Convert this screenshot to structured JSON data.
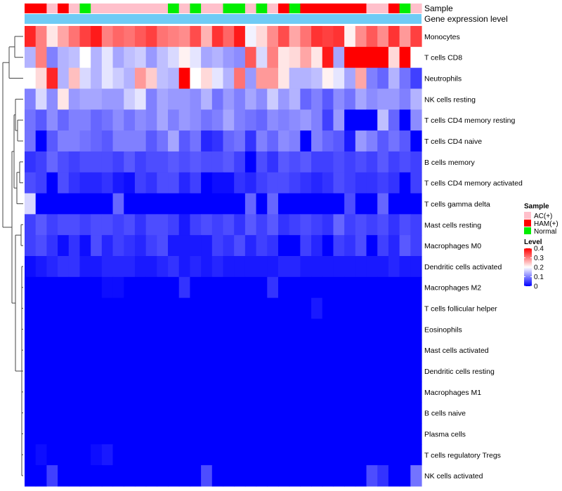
{
  "chart_data": {
    "type": "heatmap",
    "annotation_labels": {
      "sample": "Sample",
      "expression": "Gene expression level"
    },
    "rows": [
      "Monocytes",
      "T cells CD8",
      "Neutrophils",
      "NK cells resting",
      "T cells CD4 memory resting",
      "T cells CD4 naive",
      "B cells memory",
      "T cells CD4 memory activated",
      "T cells gamma delta",
      "Mast cells resting",
      "Macrophages M0",
      "Dendritic cells activated",
      "Macrophages M2",
      "T cells follicular helper",
      "Eosinophils",
      "Mast cells activated",
      "Dendritic cells resting",
      "Macrophages M1",
      "B cells naive",
      "Plasma cells",
      "T cells regulatory  Tregs",
      "NK cells activated"
    ],
    "sample_groups": [
      "HAM(+)",
      "HAM(+)",
      "AC(+)",
      "HAM(+)",
      "AC(+)",
      "Normal",
      "AC(+)",
      "AC(+)",
      "AC(+)",
      "AC(+)",
      "AC(+)",
      "AC(+)",
      "AC(+)",
      "Normal",
      "AC(+)",
      "Normal",
      "AC(+)",
      "AC(+)",
      "Normal",
      "Normal",
      "AC(+)",
      "Normal",
      "AC(+)",
      "HAM(+)",
      "Normal",
      "HAM(+)",
      "HAM(+)",
      "HAM(+)",
      "HAM(+)",
      "HAM(+)",
      "HAM(+)",
      "AC(+)",
      "AC(+)",
      "HAM(+)",
      "Normal",
      "AC(+)"
    ],
    "values": [
      [
        0.37,
        0.3,
        0.22,
        0.27,
        0.31,
        0.35,
        0.38,
        0.3,
        0.32,
        0.31,
        0.33,
        0.35,
        0.31,
        0.3,
        0.29,
        0.34,
        0.26,
        0.36,
        0.32,
        0.38,
        0.19,
        0.23,
        0.29,
        0.34,
        0.27,
        0.31,
        0.36,
        0.35,
        0.36,
        0.21,
        0.29,
        0.33,
        0.29,
        0.36,
        0.28,
        0.35
      ],
      [
        0.14,
        0.3,
        0.1,
        0.14,
        0.15,
        0.2,
        0.14,
        0.18,
        0.13,
        0.15,
        0.16,
        0.12,
        0.15,
        0.17,
        0.21,
        0.18,
        0.13,
        0.14,
        0.12,
        0.11,
        0.33,
        0.17,
        0.3,
        0.22,
        0.23,
        0.27,
        0.22,
        0.38,
        0.13,
        0.4,
        0.4,
        0.4,
        0.4,
        0.23,
        0.4,
        0.2
      ],
      [
        0.2,
        0.23,
        0.37,
        0.14,
        0.25,
        0.17,
        0.14,
        0.18,
        0.16,
        0.14,
        0.28,
        0.24,
        0.15,
        0.14,
        0.4,
        0.2,
        0.23,
        0.18,
        0.14,
        0.31,
        0.12,
        0.28,
        0.28,
        0.22,
        0.14,
        0.14,
        0.15,
        0.21,
        0.18,
        0.13,
        0.27,
        0.1,
        0.08,
        0.14,
        0.09,
        0.05
      ],
      [
        0.1,
        0.17,
        0.11,
        0.22,
        0.12,
        0.13,
        0.13,
        0.12,
        0.12,
        0.16,
        0.18,
        0.1,
        0.13,
        0.12,
        0.12,
        0.11,
        0.14,
        0.09,
        0.12,
        0.1,
        0.13,
        0.11,
        0.16,
        0.12,
        0.14,
        0.08,
        0.1,
        0.07,
        0.11,
        0.09,
        0.13,
        0.11,
        0.12,
        0.12,
        0.1,
        0.14
      ],
      [
        0.09,
        0.07,
        0.11,
        0.08,
        0.1,
        0.1,
        0.08,
        0.09,
        0.11,
        0.09,
        0.11,
        0.1,
        0.13,
        0.1,
        0.12,
        0.11,
        0.09,
        0.1,
        0.13,
        0.1,
        0.09,
        0.08,
        0.11,
        0.1,
        0.11,
        0.12,
        0.1,
        0.05,
        0.12,
        0.0,
        0.0,
        0.0,
        0.15,
        0.08,
        0.0,
        0.11
      ],
      [
        0.09,
        0.0,
        0.07,
        0.1,
        0.1,
        0.09,
        0.08,
        0.07,
        0.1,
        0.1,
        0.1,
        0.07,
        0.09,
        0.13,
        0.07,
        0.09,
        0.03,
        0.04,
        0.08,
        0.09,
        0.04,
        0.1,
        0.08,
        0.11,
        0.1,
        0.0,
        0.1,
        0.08,
        0.07,
        0.02,
        0.12,
        0.1,
        0.07,
        0.09,
        0.07,
        0.0
      ],
      [
        0.04,
        0.05,
        0.08,
        0.06,
        0.05,
        0.06,
        0.06,
        0.06,
        0.05,
        0.07,
        0.05,
        0.06,
        0.06,
        0.07,
        0.06,
        0.07,
        0.06,
        0.06,
        0.07,
        0.05,
        0.0,
        0.06,
        0.04,
        0.07,
        0.06,
        0.07,
        0.05,
        0.05,
        0.06,
        0.05,
        0.06,
        0.05,
        0.07,
        0.05,
        0.06,
        0.05
      ],
      [
        0.06,
        0.05,
        0.0,
        0.06,
        0.04,
        0.03,
        0.03,
        0.04,
        0.02,
        0.01,
        0.05,
        0.04,
        0.06,
        0.06,
        0.03,
        0.05,
        0.0,
        0.01,
        0.01,
        0.04,
        0.03,
        0.05,
        0.06,
        0.06,
        0.05,
        0.04,
        0.03,
        0.04,
        0.06,
        0.05,
        0.04,
        0.04,
        0.05,
        0.04,
        0.0,
        0.05
      ],
      [
        0.17,
        0.0,
        0.0,
        0.0,
        0.0,
        0.0,
        0.0,
        0.0,
        0.08,
        0.0,
        0.0,
        0.0,
        0.0,
        0.0,
        0.0,
        0.0,
        0.0,
        0.0,
        0.0,
        0.0,
        0.08,
        0.0,
        0.08,
        0.0,
        0.0,
        0.0,
        0.0,
        0.0,
        0.0,
        0.06,
        0.0,
        0.0,
        0.08,
        0.0,
        0.0,
        0.0
      ],
      [
        0.05,
        0.07,
        0.05,
        0.06,
        0.06,
        0.05,
        0.06,
        0.06,
        0.05,
        0.06,
        0.04,
        0.06,
        0.06,
        0.05,
        0.02,
        0.05,
        0.06,
        0.05,
        0.06,
        0.04,
        0.07,
        0.05,
        0.07,
        0.04,
        0.05,
        0.06,
        0.05,
        0.04,
        0.08,
        0.05,
        0.06,
        0.05,
        0.06,
        0.04,
        0.06,
        0.05
      ],
      [
        0.05,
        0.06,
        0.04,
        0.01,
        0.04,
        0.01,
        0.06,
        0.03,
        0.05,
        0.04,
        0.03,
        0.05,
        0.06,
        0.02,
        0.02,
        0.02,
        0.02,
        0.05,
        0.04,
        0.06,
        0.03,
        0.05,
        0.04,
        0.0,
        0.0,
        0.05,
        0.03,
        0.0,
        0.05,
        0.04,
        0.06,
        0.0,
        0.05,
        0.03,
        0.07,
        0.05
      ],
      [
        0.01,
        0.02,
        0.03,
        0.04,
        0.04,
        0.02,
        0.02,
        0.03,
        0.03,
        0.03,
        0.02,
        0.02,
        0.03,
        0.04,
        0.02,
        0.03,
        0.02,
        0.03,
        0.02,
        0.02,
        0.02,
        0.02,
        0.02,
        0.03,
        0.03,
        0.02,
        0.02,
        0.02,
        0.02,
        0.02,
        0.02,
        0.02,
        0.02,
        0.03,
        0.02,
        0.02
      ],
      [
        0.0,
        0.0,
        0.0,
        0.0,
        0.0,
        0.0,
        0.0,
        0.01,
        0.01,
        0.0,
        0.0,
        0.0,
        0.0,
        0.0,
        0.04,
        0.0,
        0.0,
        0.0,
        0.0,
        0.0,
        0.0,
        0.0,
        0.04,
        0.0,
        0.0,
        0.0,
        0.0,
        0.0,
        0.0,
        0.0,
        0.0,
        0.0,
        0.0,
        0.0,
        0.0,
        0.0
      ],
      [
        0.0,
        0.0,
        0.0,
        0.0,
        0.0,
        0.0,
        0.0,
        0.0,
        0.0,
        0.0,
        0.0,
        0.0,
        0.0,
        0.0,
        0.0,
        0.0,
        0.0,
        0.0,
        0.0,
        0.0,
        0.0,
        0.0,
        0.0,
        0.0,
        0.0,
        0.0,
        0.02,
        0.0,
        0.0,
        0.0,
        0.0,
        0.0,
        0.0,
        0.0,
        0.0,
        0.0
      ],
      [
        0.0,
        0.0,
        0.0,
        0.0,
        0.0,
        0.0,
        0.0,
        0.0,
        0.0,
        0.0,
        0.0,
        0.0,
        0.0,
        0.0,
        0.0,
        0.0,
        0.0,
        0.0,
        0.0,
        0.0,
        0.0,
        0.0,
        0.0,
        0.0,
        0.0,
        0.0,
        0.0,
        0.0,
        0.0,
        0.0,
        0.0,
        0.0,
        0.0,
        0.0,
        0.0,
        0.0
      ],
      [
        0.0,
        0.0,
        0.0,
        0.0,
        0.0,
        0.0,
        0.0,
        0.0,
        0.0,
        0.0,
        0.0,
        0.0,
        0.0,
        0.0,
        0.0,
        0.0,
        0.0,
        0.0,
        0.0,
        0.0,
        0.0,
        0.0,
        0.0,
        0.0,
        0.0,
        0.0,
        0.0,
        0.0,
        0.0,
        0.0,
        0.0,
        0.0,
        0.0,
        0.0,
        0.0,
        0.0
      ],
      [
        0.0,
        0.0,
        0.0,
        0.0,
        0.0,
        0.0,
        0.0,
        0.0,
        0.0,
        0.0,
        0.0,
        0.0,
        0.0,
        0.0,
        0.0,
        0.0,
        0.0,
        0.0,
        0.0,
        0.0,
        0.0,
        0.0,
        0.0,
        0.0,
        0.0,
        0.0,
        0.0,
        0.0,
        0.0,
        0.0,
        0.0,
        0.0,
        0.0,
        0.0,
        0.0,
        0.0
      ],
      [
        0.0,
        0.0,
        0.0,
        0.0,
        0.0,
        0.0,
        0.0,
        0.0,
        0.0,
        0.0,
        0.0,
        0.0,
        0.0,
        0.0,
        0.0,
        0.0,
        0.0,
        0.0,
        0.0,
        0.0,
        0.0,
        0.0,
        0.0,
        0.0,
        0.0,
        0.0,
        0.0,
        0.0,
        0.0,
        0.0,
        0.0,
        0.0,
        0.0,
        0.0,
        0.0,
        0.0
      ],
      [
        0.0,
        0.0,
        0.0,
        0.0,
        0.0,
        0.0,
        0.0,
        0.0,
        0.0,
        0.0,
        0.0,
        0.0,
        0.0,
        0.0,
        0.0,
        0.0,
        0.0,
        0.0,
        0.0,
        0.0,
        0.0,
        0.0,
        0.0,
        0.0,
        0.0,
        0.0,
        0.0,
        0.0,
        0.0,
        0.0,
        0.0,
        0.0,
        0.0,
        0.0,
        0.0,
        0.0
      ],
      [
        0.0,
        0.0,
        0.0,
        0.0,
        0.0,
        0.0,
        0.0,
        0.0,
        0.0,
        0.0,
        0.0,
        0.0,
        0.0,
        0.0,
        0.0,
        0.0,
        0.0,
        0.0,
        0.0,
        0.0,
        0.0,
        0.0,
        0.0,
        0.0,
        0.0,
        0.0,
        0.0,
        0.0,
        0.0,
        0.0,
        0.0,
        0.0,
        0.0,
        0.0,
        0.0,
        0.0
      ],
      [
        0.0,
        0.01,
        0.0,
        0.0,
        0.0,
        0.0,
        0.01,
        0.02,
        0.0,
        0.0,
        0.0,
        0.0,
        0.0,
        0.0,
        0.0,
        0.0,
        0.0,
        0.0,
        0.0,
        0.0,
        0.0,
        0.0,
        0.0,
        0.0,
        0.0,
        0.0,
        0.0,
        0.0,
        0.0,
        0.0,
        0.0,
        0.0,
        0.0,
        0.0,
        0.0,
        0.0
      ],
      [
        0.0,
        0.0,
        0.05,
        0.0,
        0.0,
        0.0,
        0.0,
        0.0,
        0.0,
        0.0,
        0.0,
        0.0,
        0.0,
        0.0,
        0.0,
        0.0,
        0.06,
        0.0,
        0.0,
        0.0,
        0.0,
        0.0,
        0.0,
        0.0,
        0.0,
        0.0,
        0.0,
        0.0,
        0.0,
        0.0,
        0.0,
        0.06,
        0.04,
        0.0,
        0.0,
        0.09
      ]
    ],
    "legend": {
      "sample_title": "Sample",
      "sample_entries": [
        {
          "label": "AC(+)",
          "color": "#ffc0cb"
        },
        {
          "label": "HAM(+)",
          "color": "#ff0000"
        },
        {
          "label": "Normal",
          "color": "#00ee00"
        }
      ],
      "level_title": "Level",
      "level_ticks": [
        {
          "label": "0.4",
          "value": 0.4
        },
        {
          "label": "0.3",
          "value": 0.3
        },
        {
          "label": "0.2",
          "value": 0.2
        },
        {
          "label": "0.1",
          "value": 0.1
        },
        {
          "label": "0",
          "value": 0.0
        }
      ]
    },
    "color_scale": {
      "low": "#0000ff",
      "mid": "#ffffff",
      "high": "#ff0000",
      "min": 0,
      "mid_value": 0.2,
      "max": 0.4
    },
    "expression_bar_color": "#6ecbf5"
  }
}
